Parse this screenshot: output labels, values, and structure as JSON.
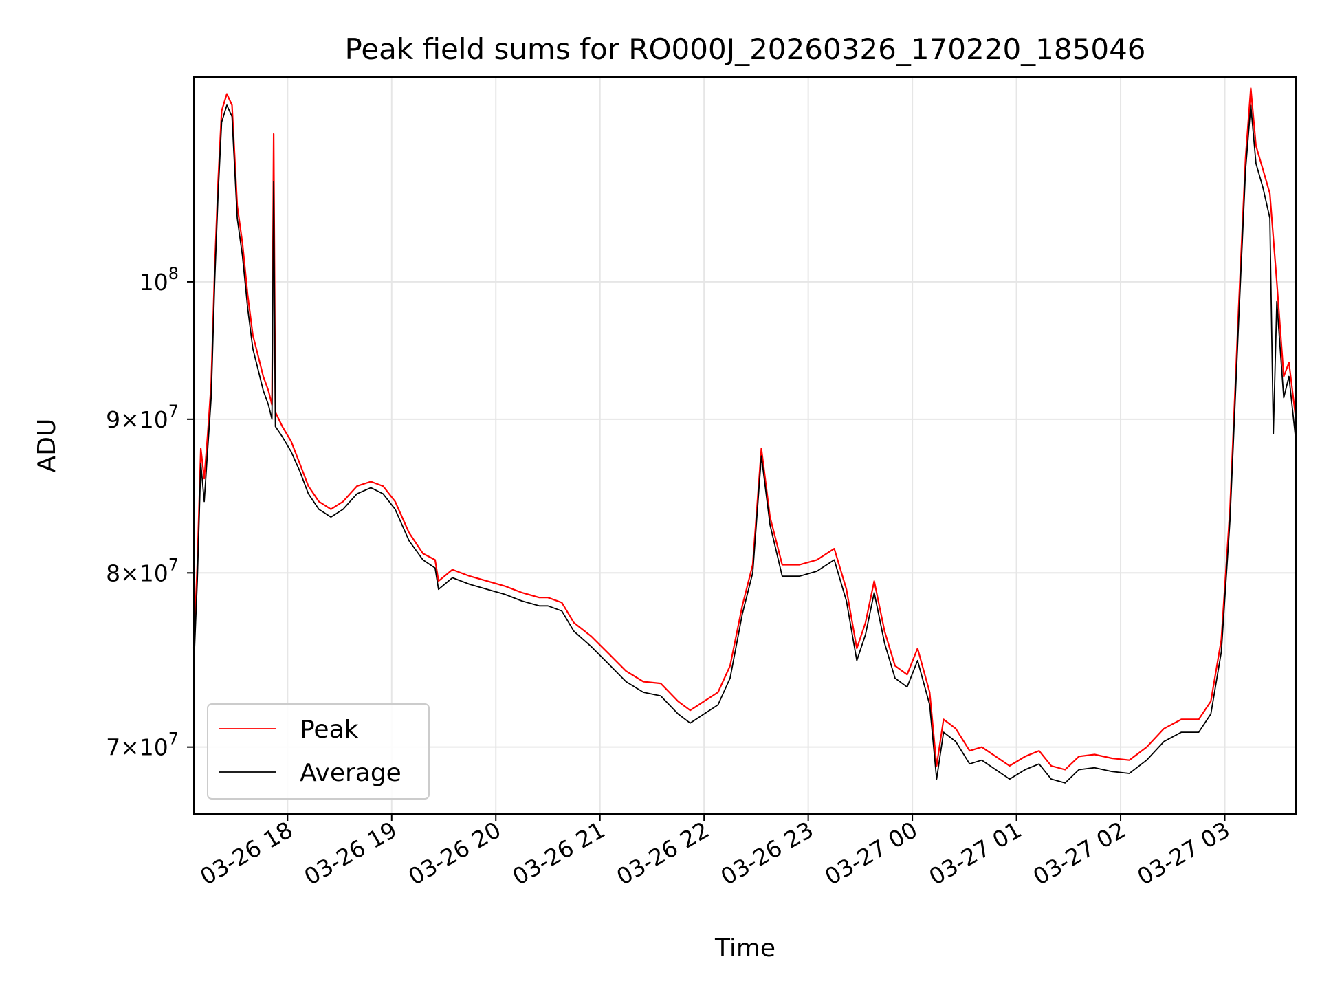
{
  "chart_data": {
    "type": "line",
    "title": "Peak field sums for RO000J_20260326_170220_185046",
    "xlabel": "Time",
    "ylabel": "ADU",
    "x_scale": "time",
    "y_scale": "log",
    "xlim": [
      "2026-03-26 17:06",
      "2026-03-27 03:41"
    ],
    "ylim": [
      66500000,
      117000000
    ],
    "grid": true,
    "legend_position": "lower-left",
    "x_ticks": [
      {
        "value": "2026-03-26 18:00",
        "label": "03-26 18"
      },
      {
        "value": "2026-03-26 19:00",
        "label": "03-26 19"
      },
      {
        "value": "2026-03-26 20:00",
        "label": "03-26 20"
      },
      {
        "value": "2026-03-26 21:00",
        "label": "03-26 21"
      },
      {
        "value": "2026-03-26 22:00",
        "label": "03-26 22"
      },
      {
        "value": "2026-03-26 23:00",
        "label": "03-26 23"
      },
      {
        "value": "2026-03-27 00:00",
        "label": "03-27 00"
      },
      {
        "value": "2026-03-27 01:00",
        "label": "03-27 01"
      },
      {
        "value": "2026-03-27 02:00",
        "label": "03-27 02"
      },
      {
        "value": "2026-03-27 03:00",
        "label": "03-27 03"
      }
    ],
    "y_ticks": [
      {
        "value": 70000000,
        "base": "7",
        "exp": "7"
      },
      {
        "value": 80000000,
        "base": "8",
        "exp": "7"
      },
      {
        "value": 90000000,
        "base": "9",
        "exp": "7"
      },
      {
        "value": 100000000,
        "base": "",
        "exp": "8"
      }
    ],
    "series": [
      {
        "name": "Peak",
        "color": "#ff0000",
        "points": [
          [
            "2026-03-26 17:06",
            75500000
          ],
          [
            "2026-03-26 17:08",
            80500000
          ],
          [
            "2026-03-26 17:10",
            88000000
          ],
          [
            "2026-03-26 17:12",
            86000000
          ],
          [
            "2026-03-26 17:14",
            89000000
          ],
          [
            "2026-03-26 17:16",
            92500000
          ],
          [
            "2026-03-26 17:18",
            101000000
          ],
          [
            "2026-03-26 17:20",
            108000000
          ],
          [
            "2026-03-26 17:22",
            114000000
          ],
          [
            "2026-03-26 17:25",
            115500000
          ],
          [
            "2026-03-26 17:28",
            114500000
          ],
          [
            "2026-03-26 17:31",
            106000000
          ],
          [
            "2026-03-26 17:34",
            103000000
          ],
          [
            "2026-03-26 17:37",
            99000000
          ],
          [
            "2026-03-26 17:40",
            96000000
          ],
          [
            "2026-03-26 17:43",
            94500000
          ],
          [
            "2026-03-26 17:46",
            93000000
          ],
          [
            "2026-03-26 17:49",
            92000000
          ],
          [
            "2026-03-26 17:51",
            91000000
          ],
          [
            "2026-03-26 17:52",
            112000000
          ],
          [
            "2026-03-26 17:53",
            90500000
          ],
          [
            "2026-03-26 17:57",
            89500000
          ],
          [
            "2026-03-26 18:02",
            88500000
          ],
          [
            "2026-03-26 18:07",
            87000000
          ],
          [
            "2026-03-26 18:12",
            85500000
          ],
          [
            "2026-03-26 18:18",
            84500000
          ],
          [
            "2026-03-26 18:25",
            84000000
          ],
          [
            "2026-03-26 18:32",
            84500000
          ],
          [
            "2026-03-26 18:40",
            85500000
          ],
          [
            "2026-03-26 18:48",
            85800000
          ],
          [
            "2026-03-26 18:55",
            85500000
          ],
          [
            "2026-03-26 19:02",
            84500000
          ],
          [
            "2026-03-26 19:10",
            82500000
          ],
          [
            "2026-03-26 19:18",
            81200000
          ],
          [
            "2026-03-26 19:25",
            80800000
          ],
          [
            "2026-03-26 19:27",
            79500000
          ],
          [
            "2026-03-26 19:35",
            80200000
          ],
          [
            "2026-03-26 19:45",
            79800000
          ],
          [
            "2026-03-26 19:55",
            79500000
          ],
          [
            "2026-03-26 20:05",
            79200000
          ],
          [
            "2026-03-26 20:15",
            78800000
          ],
          [
            "2026-03-26 20:25",
            78500000
          ],
          [
            "2026-03-26 20:30",
            78500000
          ],
          [
            "2026-03-26 20:38",
            78200000
          ],
          [
            "2026-03-26 20:45",
            77000000
          ],
          [
            "2026-03-26 20:55",
            76200000
          ],
          [
            "2026-03-26 21:05",
            75200000
          ],
          [
            "2026-03-26 21:15",
            74200000
          ],
          [
            "2026-03-26 21:25",
            73600000
          ],
          [
            "2026-03-26 21:35",
            73500000
          ],
          [
            "2026-03-26 21:45",
            72500000
          ],
          [
            "2026-03-26 21:52",
            72000000
          ],
          [
            "2026-03-26 22:00",
            72500000
          ],
          [
            "2026-03-26 22:08",
            73000000
          ],
          [
            "2026-03-26 22:15",
            74500000
          ],
          [
            "2026-03-26 22:22",
            78000000
          ],
          [
            "2026-03-26 22:28",
            80500000
          ],
          [
            "2026-03-26 22:33",
            88000000
          ],
          [
            "2026-03-26 22:38",
            83500000
          ],
          [
            "2026-03-26 22:45",
            80500000
          ],
          [
            "2026-03-26 22:55",
            80500000
          ],
          [
            "2026-03-26 23:05",
            80800000
          ],
          [
            "2026-03-26 23:15",
            81500000
          ],
          [
            "2026-03-26 23:22",
            79000000
          ],
          [
            "2026-03-26 23:28",
            75500000
          ],
          [
            "2026-03-26 23:33",
            77000000
          ],
          [
            "2026-03-26 23:38",
            79500000
          ],
          [
            "2026-03-26 23:44",
            76500000
          ],
          [
            "2026-03-26 23:50",
            74500000
          ],
          [
            "2026-03-26 23:57",
            74000000
          ],
          [
            "2026-03-27 00:03",
            75500000
          ],
          [
            "2026-03-27 00:10",
            73000000
          ],
          [
            "2026-03-27 00:14",
            69000000
          ],
          [
            "2026-03-27 00:18",
            71500000
          ],
          [
            "2026-03-27 00:25",
            71000000
          ],
          [
            "2026-03-27 00:33",
            69800000
          ],
          [
            "2026-03-27 00:40",
            70000000
          ],
          [
            "2026-03-27 00:48",
            69500000
          ],
          [
            "2026-03-27 00:56",
            69000000
          ],
          [
            "2026-03-27 01:05",
            69500000
          ],
          [
            "2026-03-27 01:13",
            69800000
          ],
          [
            "2026-03-27 01:20",
            69000000
          ],
          [
            "2026-03-27 01:28",
            68800000
          ],
          [
            "2026-03-27 01:36",
            69500000
          ],
          [
            "2026-03-27 01:45",
            69600000
          ],
          [
            "2026-03-27 01:55",
            69400000
          ],
          [
            "2026-03-27 02:05",
            69300000
          ],
          [
            "2026-03-27 02:15",
            70000000
          ],
          [
            "2026-03-27 02:25",
            71000000
          ],
          [
            "2026-03-27 02:35",
            71500000
          ],
          [
            "2026-03-27 02:45",
            71500000
          ],
          [
            "2026-03-27 02:52",
            72500000
          ],
          [
            "2026-03-27 02:58",
            76000000
          ],
          [
            "2026-03-27 03:03",
            84000000
          ],
          [
            "2026-03-27 03:08",
            98000000
          ],
          [
            "2026-03-27 03:12",
            110000000
          ],
          [
            "2026-03-27 03:15",
            116000000
          ],
          [
            "2026-03-27 03:18",
            111000000
          ],
          [
            "2026-03-27 03:22",
            109000000
          ],
          [
            "2026-03-27 03:26",
            107000000
          ],
          [
            "2026-03-27 03:30",
            100000000
          ],
          [
            "2026-03-27 03:34",
            93000000
          ],
          [
            "2026-03-27 03:37",
            94000000
          ],
          [
            "2026-03-27 03:41",
            90000000
          ]
        ]
      },
      {
        "name": "Average",
        "color": "#000000",
        "points": [
          [
            "2026-03-26 17:06",
            74500000
          ],
          [
            "2026-03-26 17:08",
            79500000
          ],
          [
            "2026-03-26 17:10",
            87000000
          ],
          [
            "2026-03-26 17:12",
            84500000
          ],
          [
            "2026-03-26 17:14",
            88000000
          ],
          [
            "2026-03-26 17:16",
            91500000
          ],
          [
            "2026-03-26 17:18",
            100000000
          ],
          [
            "2026-03-26 17:20",
            107000000
          ],
          [
            "2026-03-26 17:22",
            113000000
          ],
          [
            "2026-03-26 17:25",
            114500000
          ],
          [
            "2026-03-26 17:28",
            113500000
          ],
          [
            "2026-03-26 17:31",
            105000000
          ],
          [
            "2026-03-26 17:34",
            102000000
          ],
          [
            "2026-03-26 17:37",
            98000000
          ],
          [
            "2026-03-26 17:40",
            95000000
          ],
          [
            "2026-03-26 17:43",
            93500000
          ],
          [
            "2026-03-26 17:46",
            92000000
          ],
          [
            "2026-03-26 17:49",
            91000000
          ],
          [
            "2026-03-26 17:51",
            90000000
          ],
          [
            "2026-03-26 17:52",
            108000000
          ],
          [
            "2026-03-26 17:53",
            89500000
          ],
          [
            "2026-03-26 17:57",
            88800000
          ],
          [
            "2026-03-26 18:02",
            87800000
          ],
          [
            "2026-03-26 18:07",
            86500000
          ],
          [
            "2026-03-26 18:12",
            85000000
          ],
          [
            "2026-03-26 18:18",
            84000000
          ],
          [
            "2026-03-26 18:25",
            83500000
          ],
          [
            "2026-03-26 18:32",
            84000000
          ],
          [
            "2026-03-26 18:40",
            85000000
          ],
          [
            "2026-03-26 18:48",
            85400000
          ],
          [
            "2026-03-26 18:55",
            85000000
          ],
          [
            "2026-03-26 19:02",
            84000000
          ],
          [
            "2026-03-26 19:10",
            82000000
          ],
          [
            "2026-03-26 19:18",
            80800000
          ],
          [
            "2026-03-26 19:25",
            80300000
          ],
          [
            "2026-03-26 19:27",
            79000000
          ],
          [
            "2026-03-26 19:35",
            79700000
          ],
          [
            "2026-03-26 19:45",
            79300000
          ],
          [
            "2026-03-26 19:55",
            79000000
          ],
          [
            "2026-03-26 20:05",
            78700000
          ],
          [
            "2026-03-26 20:15",
            78300000
          ],
          [
            "2026-03-26 20:25",
            78000000
          ],
          [
            "2026-03-26 20:30",
            78000000
          ],
          [
            "2026-03-26 20:38",
            77700000
          ],
          [
            "2026-03-26 20:45",
            76500000
          ],
          [
            "2026-03-26 20:55",
            75600000
          ],
          [
            "2026-03-26 21:05",
            74600000
          ],
          [
            "2026-03-26 21:15",
            73600000
          ],
          [
            "2026-03-26 21:25",
            73000000
          ],
          [
            "2026-03-26 21:35",
            72800000
          ],
          [
            "2026-03-26 21:45",
            71800000
          ],
          [
            "2026-03-26 21:52",
            71300000
          ],
          [
            "2026-03-26 22:00",
            71800000
          ],
          [
            "2026-03-26 22:08",
            72300000
          ],
          [
            "2026-03-26 22:15",
            73800000
          ],
          [
            "2026-03-26 22:22",
            77500000
          ],
          [
            "2026-03-26 22:28",
            80000000
          ],
          [
            "2026-03-26 22:33",
            87500000
          ],
          [
            "2026-03-26 22:38",
            83000000
          ],
          [
            "2026-03-26 22:45",
            79800000
          ],
          [
            "2026-03-26 22:55",
            79800000
          ],
          [
            "2026-03-26 23:05",
            80100000
          ],
          [
            "2026-03-26 23:15",
            80800000
          ],
          [
            "2026-03-26 23:22",
            78300000
          ],
          [
            "2026-03-26 23:28",
            74800000
          ],
          [
            "2026-03-26 23:33",
            76300000
          ],
          [
            "2026-03-26 23:38",
            78800000
          ],
          [
            "2026-03-26 23:44",
            75800000
          ],
          [
            "2026-03-26 23:50",
            73800000
          ],
          [
            "2026-03-26 23:57",
            73300000
          ],
          [
            "2026-03-27 00:03",
            74800000
          ],
          [
            "2026-03-27 00:10",
            72300000
          ],
          [
            "2026-03-27 00:14",
            68300000
          ],
          [
            "2026-03-27 00:18",
            70800000
          ],
          [
            "2026-03-27 00:25",
            70300000
          ],
          [
            "2026-03-27 00:33",
            69100000
          ],
          [
            "2026-03-27 00:40",
            69300000
          ],
          [
            "2026-03-27 00:48",
            68800000
          ],
          [
            "2026-03-27 00:56",
            68300000
          ],
          [
            "2026-03-27 01:05",
            68800000
          ],
          [
            "2026-03-27 01:13",
            69100000
          ],
          [
            "2026-03-27 01:20",
            68300000
          ],
          [
            "2026-03-27 01:28",
            68100000
          ],
          [
            "2026-03-27 01:36",
            68800000
          ],
          [
            "2026-03-27 01:45",
            68900000
          ],
          [
            "2026-03-27 01:55",
            68700000
          ],
          [
            "2026-03-27 02:05",
            68600000
          ],
          [
            "2026-03-27 02:15",
            69300000
          ],
          [
            "2026-03-27 02:25",
            70300000
          ],
          [
            "2026-03-27 02:35",
            70800000
          ],
          [
            "2026-03-27 02:45",
            70800000
          ],
          [
            "2026-03-27 02:52",
            71800000
          ],
          [
            "2026-03-27 02:58",
            75300000
          ],
          [
            "2026-03-27 03:03",
            83300000
          ],
          [
            "2026-03-27 03:08",
            97000000
          ],
          [
            "2026-03-27 03:12",
            109000000
          ],
          [
            "2026-03-27 03:15",
            114500000
          ],
          [
            "2026-03-27 03:18",
            109500000
          ],
          [
            "2026-03-27 03:22",
            107500000
          ],
          [
            "2026-03-27 03:26",
            105000000
          ],
          [
            "2026-03-27 03:28",
            89000000
          ],
          [
            "2026-03-27 03:30",
            98500000
          ],
          [
            "2026-03-27 03:34",
            91500000
          ],
          [
            "2026-03-27 03:37",
            93000000
          ],
          [
            "2026-03-27 03:41",
            88500000
          ]
        ]
      }
    ]
  }
}
